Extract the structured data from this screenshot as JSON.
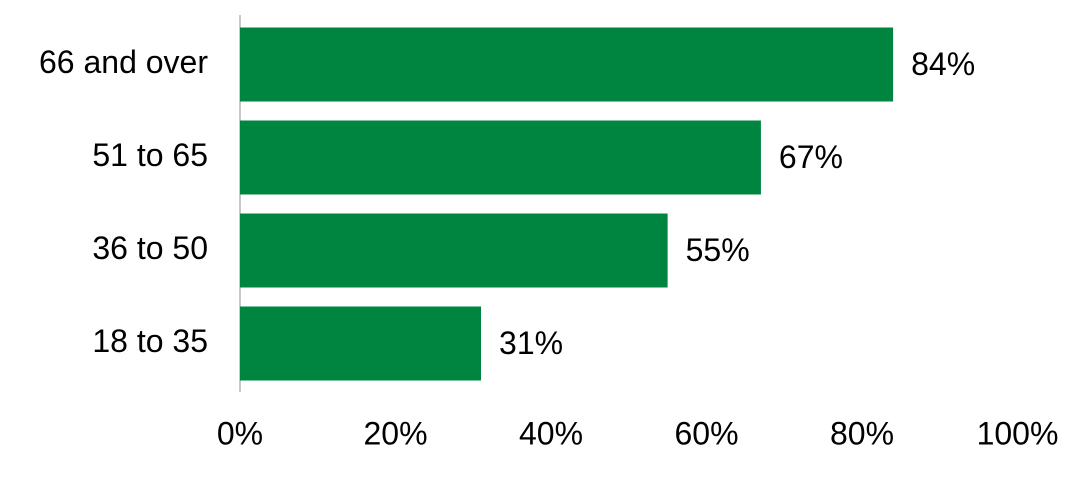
{
  "chart_data": {
    "type": "barh",
    "categories": [
      "66 and over",
      "51 to 65",
      "36 to 50",
      "18 to 35"
    ],
    "values": [
      84,
      67,
      55,
      31
    ],
    "value_labels": [
      "84%",
      "67%",
      "55%",
      "31%"
    ],
    "color": "#008540",
    "xlim": [
      0,
      100
    ],
    "xticks": [
      {
        "value": 0,
        "label": "0%"
      },
      {
        "value": 20,
        "label": "20%"
      },
      {
        "value": 40,
        "label": "40%"
      },
      {
        "value": 60,
        "label": "60%"
      },
      {
        "value": 80,
        "label": "80%"
      },
      {
        "value": 100,
        "label": "100%"
      }
    ],
    "grid": false
  }
}
